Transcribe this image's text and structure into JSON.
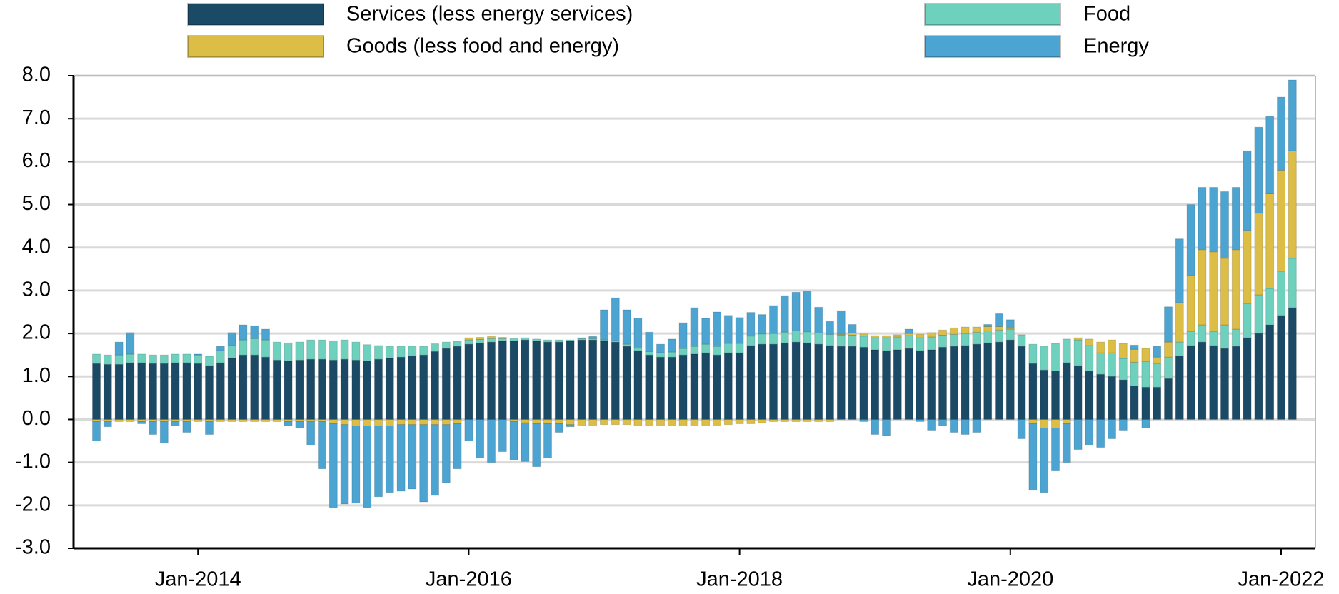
{
  "chart_data": {
    "type": "stacked_bar",
    "categories": [
      null,
      null,
      null,
      null,
      null,
      null,
      null,
      null,
      null,
      "Jan-2014",
      null,
      null,
      null,
      null,
      null,
      null,
      null,
      null,
      null,
      null,
      null,
      null,
      null,
      null,
      null,
      null,
      null,
      null,
      null,
      null,
      null,
      null,
      null,
      "Jan-2016",
      null,
      null,
      null,
      null,
      null,
      null,
      null,
      null,
      null,
      null,
      null,
      null,
      null,
      null,
      null,
      null,
      null,
      null,
      null,
      null,
      null,
      null,
      null,
      "Jan-2018",
      null,
      null,
      null,
      null,
      null,
      null,
      null,
      null,
      null,
      null,
      null,
      null,
      null,
      null,
      null,
      null,
      null,
      null,
      null,
      null,
      null,
      null,
      null,
      "Jan-2020",
      null,
      null,
      null,
      null,
      null,
      null,
      null,
      null,
      null,
      null,
      null,
      null,
      null,
      null,
      null,
      null,
      null,
      null,
      null,
      null,
      null,
      null,
      null,
      "Jan-2022",
      null
    ],
    "series": [
      {
        "name": "Services (less energy services)",
        "color": "#1b4a66",
        "values": [
          1.3,
          1.28,
          1.28,
          1.32,
          1.32,
          1.3,
          1.3,
          1.32,
          1.32,
          1.3,
          1.25,
          1.32,
          1.42,
          1.5,
          1.5,
          1.45,
          1.38,
          1.36,
          1.38,
          1.4,
          1.4,
          1.38,
          1.4,
          1.38,
          1.36,
          1.4,
          1.42,
          1.45,
          1.48,
          1.5,
          1.58,
          1.65,
          1.7,
          1.75,
          1.78,
          1.8,
          1.82,
          1.82,
          1.85,
          1.82,
          1.8,
          1.8,
          1.82,
          1.85,
          1.85,
          1.82,
          1.8,
          1.7,
          1.6,
          1.5,
          1.45,
          1.45,
          1.5,
          1.52,
          1.55,
          1.5,
          1.55,
          1.55,
          1.72,
          1.75,
          1.75,
          1.78,
          1.8,
          1.78,
          1.75,
          1.72,
          1.7,
          1.7,
          1.68,
          1.62,
          1.6,
          1.62,
          1.65,
          1.6,
          1.62,
          1.68,
          1.7,
          1.72,
          1.75,
          1.78,
          1.8,
          1.85,
          1.7,
          1.3,
          1.15,
          1.12,
          1.32,
          1.25,
          1.12,
          1.05,
          1.0,
          0.92,
          0.78,
          0.75,
          0.75,
          0.95,
          1.48,
          1.72,
          1.8,
          1.72,
          1.65,
          1.7,
          1.9,
          2.0,
          2.2,
          2.42,
          2.6
        ]
      },
      {
        "name": "Goods (less food and energy)",
        "color": "#dcbd45",
        "values": [
          -0.05,
          -0.05,
          -0.05,
          -0.05,
          -0.05,
          -0.05,
          -0.05,
          -0.05,
          -0.05,
          -0.05,
          -0.05,
          -0.05,
          -0.05,
          -0.05,
          -0.05,
          -0.05,
          -0.05,
          -0.05,
          -0.05,
          -0.05,
          -0.05,
          -0.1,
          -0.12,
          -0.15,
          -0.15,
          -0.15,
          -0.15,
          -0.12,
          -0.12,
          -0.12,
          -0.12,
          -0.12,
          -0.1,
          0.05,
          0.05,
          0.05,
          0.03,
          -0.05,
          -0.08,
          -0.1,
          -0.1,
          -0.1,
          -0.12,
          -0.15,
          -0.15,
          -0.12,
          -0.12,
          -0.12,
          -0.15,
          -0.15,
          -0.15,
          -0.15,
          -0.15,
          -0.15,
          -0.15,
          -0.15,
          -0.12,
          -0.1,
          -0.1,
          -0.08,
          -0.05,
          -0.05,
          -0.05,
          -0.05,
          -0.05,
          -0.05,
          0.02,
          0.05,
          0.05,
          0.05,
          0.05,
          0.05,
          0.05,
          0.08,
          0.1,
          0.12,
          0.15,
          0.15,
          0.12,
          0.1,
          0.08,
          0.02,
          0.02,
          -0.1,
          -0.2,
          -0.2,
          -0.1,
          0.05,
          0.15,
          0.25,
          0.3,
          0.35,
          0.3,
          0.3,
          0.15,
          0.35,
          0.92,
          1.3,
          1.75,
          1.85,
          1.55,
          1.85,
          1.7,
          1.9,
          2.2,
          2.35,
          2.5
        ]
      },
      {
        "name": "Food",
        "color": "#6dd1bd",
        "values": [
          0.22,
          0.22,
          0.22,
          0.2,
          0.2,
          0.2,
          0.2,
          0.2,
          0.2,
          0.2,
          0.22,
          0.28,
          0.3,
          0.35,
          0.38,
          0.4,
          0.42,
          0.42,
          0.42,
          0.45,
          0.45,
          0.45,
          0.45,
          0.42,
          0.38,
          0.32,
          0.28,
          0.25,
          0.22,
          0.2,
          0.18,
          0.15,
          0.12,
          0.1,
          0.08,
          0.08,
          0.06,
          0.06,
          0.05,
          0.05,
          0.05,
          0.05,
          0.03,
          0.03,
          0.03,
          0.03,
          0.03,
          0.05,
          0.06,
          0.08,
          0.1,
          0.12,
          0.15,
          0.18,
          0.2,
          0.2,
          0.22,
          0.22,
          0.22,
          0.24,
          0.25,
          0.25,
          0.26,
          0.26,
          0.26,
          0.26,
          0.26,
          0.26,
          0.26,
          0.28,
          0.3,
          0.3,
          0.3,
          0.3,
          0.3,
          0.28,
          0.28,
          0.28,
          0.28,
          0.28,
          0.28,
          0.25,
          0.25,
          0.45,
          0.55,
          0.65,
          0.55,
          0.6,
          0.6,
          0.5,
          0.55,
          0.5,
          0.55,
          0.6,
          0.55,
          0.5,
          0.32,
          0.33,
          0.4,
          0.33,
          0.55,
          0.4,
          0.8,
          0.9,
          0.85,
          1.03,
          1.15
        ]
      },
      {
        "name": "Energy",
        "color": "#4ba4d1",
        "values": [
          -0.45,
          -0.12,
          0.3,
          0.5,
          -0.05,
          -0.3,
          -0.5,
          -0.1,
          -0.25,
          0.02,
          -0.3,
          0.1,
          0.3,
          0.35,
          0.3,
          0.25,
          0.0,
          -0.1,
          -0.15,
          -0.55,
          -1.1,
          -1.95,
          -1.85,
          -1.8,
          -1.9,
          -1.65,
          -1.55,
          -1.55,
          -1.5,
          -1.8,
          -1.65,
          -1.35,
          -1.05,
          -0.5,
          -0.9,
          -1.0,
          -0.75,
          -0.9,
          -0.9,
          -1.0,
          -0.8,
          -0.2,
          -0.05,
          0.02,
          0.05,
          0.7,
          1.0,
          0.8,
          0.7,
          0.45,
          0.2,
          0.3,
          0.6,
          0.9,
          0.6,
          0.8,
          0.65,
          0.6,
          0.55,
          0.45,
          0.65,
          0.85,
          0.9,
          0.95,
          0.6,
          0.3,
          0.55,
          0.2,
          -0.05,
          -0.35,
          -0.38,
          0.0,
          0.1,
          -0.05,
          -0.25,
          -0.15,
          -0.3,
          -0.35,
          -0.3,
          0.05,
          0.3,
          0.2,
          -0.45,
          -1.55,
          -1.5,
          -1.0,
          -0.9,
          -0.7,
          -0.6,
          -0.65,
          -0.45,
          -0.25,
          0.1,
          -0.2,
          0.25,
          0.82,
          1.48,
          1.65,
          1.45,
          1.5,
          1.55,
          1.45,
          1.85,
          2.0,
          1.8,
          1.7,
          1.65
        ]
      }
    ],
    "ylim": [
      -3,
      8
    ],
    "yticks": [
      {
        "value": -3,
        "label": "-3.0"
      },
      {
        "value": -2,
        "label": "-2.0"
      },
      {
        "value": -1,
        "label": "-1.0"
      },
      {
        "value": 0,
        "label": "0.0"
      },
      {
        "value": 1,
        "label": "1.0"
      },
      {
        "value": 2,
        "label": "2.0"
      },
      {
        "value": 3,
        "label": "3.0"
      },
      {
        "value": 4,
        "label": "4.0"
      },
      {
        "value": 5,
        "label": "5.0"
      },
      {
        "value": 6,
        "label": "6.0"
      },
      {
        "value": 7,
        "label": "7.0"
      },
      {
        "value": 8,
        "label": "8.0"
      }
    ],
    "grid": true
  }
}
